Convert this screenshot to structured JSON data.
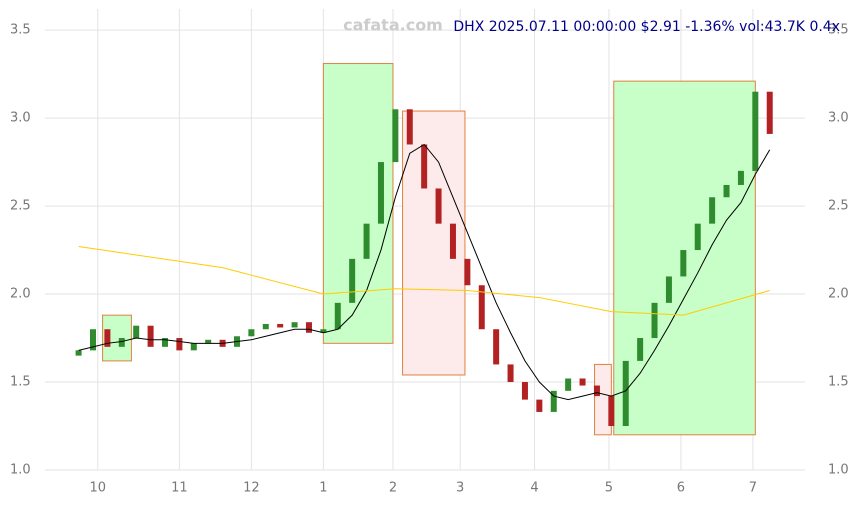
{
  "chart_data": {
    "type": "candlestick",
    "title": "DHX 2025.07.11 00:00:00 $2.91 -1.36% vol:43.7K 0.4x",
    "watermark": "cafata.com",
    "xlim": [
      0,
      316.7
    ],
    "ylim": [
      1.0,
      3.62
    ],
    "grid": true,
    "xticks": [
      {
        "value": 22,
        "label": "10"
      },
      {
        "value": 56,
        "label": "11"
      },
      {
        "value": 86,
        "label": "12"
      },
      {
        "value": 116,
        "label": "1"
      },
      {
        "value": 145,
        "label": "2"
      },
      {
        "value": 173,
        "label": "3"
      },
      {
        "value": 204,
        "label": "4"
      },
      {
        "value": 235,
        "label": "5"
      },
      {
        "value": 265,
        "label": "6"
      },
      {
        "value": 295,
        "label": "7"
      }
    ],
    "yticks": [
      {
        "value": 1.0,
        "label": "1.0"
      },
      {
        "value": 1.5,
        "label": "1.5"
      },
      {
        "value": 2.0,
        "label": "2.0"
      },
      {
        "value": 2.5,
        "label": "2.5"
      },
      {
        "value": 3.0,
        "label": "3.0"
      },
      {
        "value": 3.5,
        "label": "3.5"
      }
    ],
    "up_color": "#2e8b2e",
    "down_color": "#b22222",
    "x": [
      14,
      20,
      26,
      32,
      38,
      44,
      50,
      56,
      62,
      68,
      74,
      80,
      86,
      92,
      98,
      104,
      110,
      116,
      122,
      128,
      134,
      140,
      146,
      152,
      158,
      164,
      170,
      176,
      182,
      188,
      194,
      200,
      206,
      212,
      218,
      224,
      230,
      236,
      242,
      248,
      254,
      260,
      266,
      272,
      278,
      284,
      290,
      296,
      302
    ],
    "open": [
      1.65,
      1.68,
      1.8,
      1.7,
      1.75,
      1.82,
      1.7,
      1.75,
      1.68,
      1.72,
      1.74,
      1.7,
      1.76,
      1.8,
      1.83,
      1.81,
      1.84,
      1.78,
      1.8,
      1.95,
      2.2,
      2.4,
      2.75,
      3.05,
      2.85,
      2.6,
      2.4,
      2.2,
      2.05,
      1.8,
      1.6,
      1.5,
      1.4,
      1.33,
      1.45,
      1.52,
      1.48,
      1.42,
      1.25,
      1.62,
      1.75,
      1.95,
      2.1,
      2.25,
      2.4,
      2.55,
      2.62,
      2.7,
      3.15
    ],
    "close": [
      1.68,
      1.8,
      1.7,
      1.75,
      1.82,
      1.7,
      1.75,
      1.68,
      1.72,
      1.74,
      1.7,
      1.76,
      1.8,
      1.83,
      1.81,
      1.84,
      1.78,
      1.8,
      1.95,
      2.2,
      2.4,
      2.75,
      3.05,
      2.85,
      2.6,
      2.4,
      2.2,
      2.05,
      1.8,
      1.6,
      1.5,
      1.4,
      1.33,
      1.45,
      1.52,
      1.48,
      1.42,
      1.25,
      1.62,
      1.75,
      1.95,
      2.1,
      2.25,
      2.4,
      2.55,
      2.62,
      2.7,
      3.15,
      2.91
    ],
    "lines": [
      {
        "color": "#000000",
        "x": [
          14,
          20,
          26,
          32,
          38,
          44,
          50,
          56,
          62,
          68,
          74,
          80,
          86,
          92,
          98,
          104,
          110,
          116,
          122,
          128,
          134,
          140,
          146,
          152,
          158,
          164,
          170,
          176,
          182,
          188,
          194,
          200,
          206,
          212,
          218,
          224,
          230,
          236,
          242,
          248,
          254,
          260,
          266,
          272,
          278,
          284,
          290,
          296,
          302
        ],
        "values": [
          1.68,
          1.7,
          1.72,
          1.73,
          1.75,
          1.74,
          1.74,
          1.73,
          1.72,
          1.72,
          1.72,
          1.73,
          1.74,
          1.76,
          1.78,
          1.8,
          1.8,
          1.78,
          1.8,
          1.88,
          2.02,
          2.25,
          2.55,
          2.8,
          2.85,
          2.75,
          2.55,
          2.35,
          2.15,
          1.95,
          1.78,
          1.62,
          1.5,
          1.42,
          1.4,
          1.42,
          1.44,
          1.42,
          1.45,
          1.55,
          1.68,
          1.82,
          1.97,
          2.12,
          2.28,
          2.42,
          2.52,
          2.68,
          2.82
        ]
      },
      {
        "color": "#ffcc00",
        "x": [
          14,
          74,
          116,
          146,
          176,
          206,
          236,
          266,
          302
        ],
        "values": [
          2.27,
          2.15,
          2.0,
          2.03,
          2.02,
          1.98,
          1.9,
          1.88,
          2.02
        ]
      }
    ],
    "zones": [
      {
        "x0": 24,
        "x1": 36,
        "y0": 1.62,
        "y1": 1.88,
        "color": "#c8ffc8",
        "stroke": "#e08040"
      },
      {
        "x0": 116,
        "x1": 145,
        "y0": 1.72,
        "y1": 3.31,
        "color": "#c8ffc8",
        "stroke": "#e08040"
      },
      {
        "x0": 149,
        "x1": 175,
        "y0": 1.54,
        "y1": 3.04,
        "color": "#fdeaea",
        "stroke": "#e08040"
      },
      {
        "x0": 229,
        "x1": 236,
        "y0": 1.2,
        "y1": 1.6,
        "color": "#fdeaea",
        "stroke": "#e08040"
      },
      {
        "x0": 237,
        "x1": 296,
        "y0": 1.2,
        "y1": 3.21,
        "color": "#c8ffc8",
        "stroke": "#e08040"
      }
    ]
  }
}
